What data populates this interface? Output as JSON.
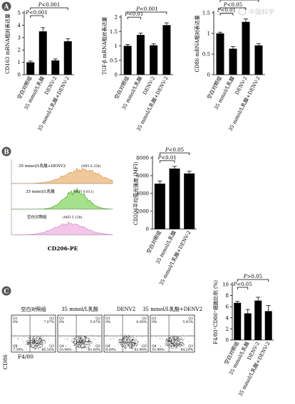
{
  "watermark": "中国科学",
  "panels": {
    "A": {
      "label": "A"
    },
    "B": {
      "label": "B"
    },
    "C": {
      "label": "C"
    }
  },
  "chart_data": [
    {
      "id": "A1",
      "type": "bar",
      "ylabel": "CD163 mRNA相对表达量",
      "ylim": [
        0,
        5
      ],
      "yticks": [
        0,
        1,
        2,
        3,
        4,
        5
      ],
      "categories": [
        "空白对照组",
        "35 mmol/L乳酸",
        "DENV-2",
        "35 mmol/L乳酸+DENV-2"
      ],
      "values": [
        1.0,
        3.5,
        1.15,
        2.7
      ],
      "errors": [
        0.1,
        0.3,
        0.12,
        0.2
      ],
      "significance": [
        {
          "from": 0,
          "to": 1,
          "text": "P<0.001"
        },
        {
          "from": 0,
          "to": 3,
          "text": "P<0.001"
        }
      ]
    },
    {
      "id": "A2",
      "type": "bar",
      "ylabel": "TGF-β mRNA相对表达量",
      "ylim": [
        0,
        2.0
      ],
      "yticks": [
        0,
        0.5,
        1.0,
        1.5,
        2.0
      ],
      "categories": [
        "空白对照组",
        "35 mmol/L乳酸",
        "DENV-2",
        "35 mmol/L乳酸+DENV-2"
      ],
      "values": [
        1.0,
        1.38,
        1.02,
        1.72
      ],
      "errors": [
        0.05,
        0.06,
        0.05,
        0.08
      ],
      "significance": [
        {
          "from": 0,
          "to": 1,
          "text": "P<0.01"
        },
        {
          "from": 0,
          "to": 3,
          "text": "P<0.001"
        }
      ]
    },
    {
      "id": "A3",
      "type": "bar",
      "ylabel": "CD86 mRNA相对表达量",
      "ylim": [
        0,
        1.5
      ],
      "yticks": [
        0,
        0.5,
        1.0,
        1.5
      ],
      "categories": [
        "空白对照组",
        "35 mmol/L乳酸",
        "DENV-2",
        "35 mmol/L乳酸+DENV-2"
      ],
      "values": [
        1.0,
        0.63,
        1.28,
        0.71
      ],
      "errors": [
        0.03,
        0.05,
        0.07,
        0.04
      ],
      "significance": [
        {
          "from": 0,
          "to": 1,
          "text": "P<0.01"
        },
        {
          "from": 0,
          "to": 2,
          "text": "P<0.05"
        },
        {
          "from": 0,
          "to": 3,
          "text": "P<0.05"
        }
      ]
    },
    {
      "id": "B2",
      "type": "bar",
      "ylabel": "CD206平均荧光强度 (MFI)",
      "ylim": [
        0,
        8000
      ],
      "yticks": [
        0,
        2000,
        4000,
        6000,
        8000
      ],
      "categories": [
        "空白对照组",
        "35 mmol/L乳酸",
        "35 mmol/L乳酸+DENV-2"
      ],
      "values": [
        5100,
        6800,
        6250
      ],
      "errors": [
        300,
        250,
        250
      ],
      "significance": [
        {
          "from": 0,
          "to": 1,
          "text": "P<0.01"
        },
        {
          "from": 0,
          "to": 2,
          "text": "P<0.05"
        }
      ]
    },
    {
      "id": "C2",
      "type": "bar",
      "ylabel": "F4/80⁺CD86⁺细胞比例 (%)",
      "ylim": [
        0,
        10
      ],
      "yticks": [
        0,
        2,
        4,
        6,
        8,
        10
      ],
      "categories": [
        "空白对照组",
        "35 mmol/L乳酸",
        "DENV-2",
        "35 mmol/L乳酸+DENV-2"
      ],
      "values": [
        6.7,
        4.8,
        7.1,
        5.2
      ],
      "errors": [
        0.25,
        0.7,
        0.6,
        1.0
      ],
      "significance": [
        {
          "from": 0,
          "to": 1,
          "text": "P<0.05"
        },
        {
          "from": 0,
          "to": 3,
          "text": "P>0.05"
        }
      ]
    },
    {
      "id": "B1",
      "type": "histogram",
      "xlabel": "CD206-PE",
      "tracks": [
        {
          "label": "35 mmol/L乳酸+DENV2",
          "mfi": "(MFI 6 258)",
          "color": "#f0c89a",
          "stroke": "#d89a58"
        },
        {
          "label": "35 mmol/L乳酸",
          "mfi": "(MFI 6 811)",
          "color": "#a6e08a",
          "stroke": "#4aa82c"
        },
        {
          "label": "空白对照组",
          "mfi": "(MFI 5 138)",
          "color": "#f4c6ea",
          "stroke": "#d88ccd"
        }
      ]
    },
    {
      "id": "C1",
      "type": "scatter",
      "ylabel": "CD86",
      "xlabel": "F4/80",
      "plots": [
        {
          "title": "空白对照组",
          "q1": "Q1",
          "q1v": "0%",
          "q2": "Q2",
          "q2v": "7.07%",
          "q3": "Q3",
          "q3v": "85.50%",
          "q4": "Q4",
          "q4v": "7.39%"
        },
        {
          "title": "35 mmol/L乳酸",
          "q1": "Q1",
          "q1v": "0%",
          "q2": "Q2",
          "q2v": "5.47%",
          "q3": "Q3",
          "q3v": "83.60%",
          "q4": "Q4",
          "q4v": "10.90%"
        },
        {
          "title": "DENV2",
          "q1": "Q1",
          "q1v": "0%",
          "q2": "Q2",
          "q2v": "8.06%",
          "q3": "Q3",
          "q3v": "83.90%",
          "q4": "Q4",
          "q4v": "8.09%"
        },
        {
          "title": "35 mmol/L乳酸+DENV2",
          "q1": "Q1",
          "q1v": "0%",
          "q2": "Q2",
          "q2v": "5.43%",
          "q3": "Q3",
          "q3v": "84.20%",
          "q4": "Q4",
          "q4v": "10.40%"
        }
      ]
    }
  ]
}
